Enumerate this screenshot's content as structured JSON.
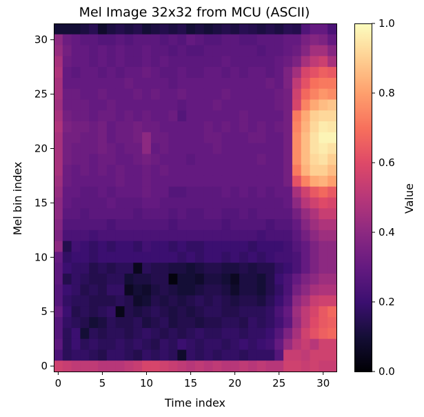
{
  "chart_data": {
    "type": "heatmap",
    "title": "Mel Image 32x32 from MCU (ASCII)",
    "xlabel": "Time index",
    "ylabel": "Mel bin index",
    "colorbar_label": "Value",
    "colormap": "magma",
    "xlim": [
      -0.5,
      31.5
    ],
    "ylim": [
      -0.5,
      31.5
    ],
    "x_ticks": [
      0,
      5,
      10,
      15,
      20,
      25,
      30
    ],
    "y_ticks": [
      0,
      5,
      10,
      15,
      20,
      25,
      30
    ],
    "clim": [
      0.0,
      1.0
    ],
    "colorbar_ticks": [
      "0.0",
      "0.2",
      "0.4",
      "0.6",
      "0.8",
      "1.0"
    ],
    "grid": false,
    "rows_top_to_bottom": [
      [
        0.1,
        0.1,
        0.1,
        0.12,
        0.15,
        0.08,
        0.12,
        0.14,
        0.12,
        0.14,
        0.1,
        0.12,
        0.14,
        0.12,
        0.14,
        0.1,
        0.12,
        0.1,
        0.12,
        0.14,
        0.12,
        0.15,
        0.14,
        0.12,
        0.14,
        0.12,
        0.15,
        0.14,
        0.25,
        0.3,
        0.3,
        0.24
      ],
      [
        0.4,
        0.32,
        0.3,
        0.28,
        0.28,
        0.26,
        0.26,
        0.28,
        0.26,
        0.28,
        0.28,
        0.28,
        0.26,
        0.28,
        0.26,
        0.3,
        0.28,
        0.26,
        0.26,
        0.28,
        0.28,
        0.26,
        0.26,
        0.28,
        0.28,
        0.28,
        0.3,
        0.3,
        0.35,
        0.38,
        0.36,
        0.3
      ],
      [
        0.42,
        0.34,
        0.3,
        0.3,
        0.28,
        0.3,
        0.28,
        0.3,
        0.28,
        0.28,
        0.3,
        0.28,
        0.28,
        0.26,
        0.28,
        0.26,
        0.26,
        0.28,
        0.28,
        0.28,
        0.28,
        0.28,
        0.28,
        0.26,
        0.28,
        0.28,
        0.3,
        0.32,
        0.38,
        0.45,
        0.45,
        0.38
      ],
      [
        0.46,
        0.32,
        0.3,
        0.3,
        0.28,
        0.3,
        0.28,
        0.3,
        0.28,
        0.28,
        0.3,
        0.28,
        0.3,
        0.28,
        0.28,
        0.28,
        0.28,
        0.28,
        0.28,
        0.3,
        0.28,
        0.28,
        0.28,
        0.28,
        0.28,
        0.3,
        0.32,
        0.36,
        0.46,
        0.52,
        0.55,
        0.46
      ],
      [
        0.48,
        0.3,
        0.28,
        0.3,
        0.3,
        0.28,
        0.3,
        0.28,
        0.3,
        0.3,
        0.32,
        0.3,
        0.28,
        0.28,
        0.3,
        0.28,
        0.28,
        0.3,
        0.3,
        0.28,
        0.3,
        0.28,
        0.3,
        0.3,
        0.28,
        0.3,
        0.36,
        0.45,
        0.58,
        0.62,
        0.66,
        0.64
      ],
      [
        0.46,
        0.3,
        0.3,
        0.3,
        0.3,
        0.3,
        0.3,
        0.3,
        0.32,
        0.3,
        0.3,
        0.3,
        0.3,
        0.28,
        0.3,
        0.3,
        0.3,
        0.3,
        0.3,
        0.3,
        0.3,
        0.3,
        0.3,
        0.3,
        0.32,
        0.3,
        0.36,
        0.52,
        0.62,
        0.7,
        0.72,
        0.72
      ],
      [
        0.46,
        0.32,
        0.32,
        0.3,
        0.3,
        0.32,
        0.3,
        0.3,
        0.3,
        0.32,
        0.3,
        0.32,
        0.3,
        0.3,
        0.32,
        0.3,
        0.3,
        0.3,
        0.3,
        0.32,
        0.3,
        0.3,
        0.3,
        0.3,
        0.3,
        0.32,
        0.34,
        0.56,
        0.68,
        0.74,
        0.78,
        0.76
      ],
      [
        0.44,
        0.32,
        0.32,
        0.32,
        0.3,
        0.3,
        0.32,
        0.3,
        0.3,
        0.3,
        0.3,
        0.3,
        0.3,
        0.3,
        0.28,
        0.3,
        0.3,
        0.3,
        0.32,
        0.3,
        0.3,
        0.3,
        0.3,
        0.3,
        0.3,
        0.32,
        0.34,
        0.58,
        0.74,
        0.82,
        0.86,
        0.88
      ],
      [
        0.46,
        0.34,
        0.32,
        0.32,
        0.3,
        0.32,
        0.32,
        0.3,
        0.32,
        0.3,
        0.32,
        0.3,
        0.3,
        0.32,
        0.26,
        0.3,
        0.3,
        0.3,
        0.3,
        0.3,
        0.3,
        0.32,
        0.3,
        0.3,
        0.3,
        0.3,
        0.34,
        0.72,
        0.82,
        0.9,
        0.92,
        0.92
      ],
      [
        0.48,
        0.36,
        0.34,
        0.34,
        0.32,
        0.34,
        0.3,
        0.32,
        0.32,
        0.34,
        0.32,
        0.32,
        0.3,
        0.3,
        0.3,
        0.3,
        0.3,
        0.32,
        0.3,
        0.32,
        0.3,
        0.32,
        0.3,
        0.32,
        0.3,
        0.32,
        0.34,
        0.74,
        0.84,
        0.92,
        0.96,
        0.95
      ],
      [
        0.46,
        0.34,
        0.34,
        0.32,
        0.32,
        0.34,
        0.3,
        0.32,
        0.32,
        0.34,
        0.4,
        0.32,
        0.32,
        0.3,
        0.3,
        0.3,
        0.3,
        0.32,
        0.32,
        0.3,
        0.3,
        0.3,
        0.32,
        0.32,
        0.3,
        0.3,
        0.34,
        0.76,
        0.86,
        0.94,
        0.98,
        0.98
      ],
      [
        0.46,
        0.34,
        0.32,
        0.32,
        0.32,
        0.34,
        0.32,
        0.3,
        0.32,
        0.32,
        0.4,
        0.3,
        0.32,
        0.3,
        0.3,
        0.3,
        0.3,
        0.3,
        0.32,
        0.3,
        0.3,
        0.3,
        0.3,
        0.3,
        0.3,
        0.3,
        0.34,
        0.76,
        0.86,
        0.94,
        0.96,
        0.94
      ],
      [
        0.46,
        0.34,
        0.32,
        0.32,
        0.3,
        0.32,
        0.32,
        0.3,
        0.3,
        0.32,
        0.34,
        0.32,
        0.3,
        0.3,
        0.3,
        0.28,
        0.3,
        0.3,
        0.3,
        0.3,
        0.3,
        0.3,
        0.3,
        0.32,
        0.3,
        0.3,
        0.34,
        0.76,
        0.86,
        0.92,
        0.94,
        0.9
      ],
      [
        0.46,
        0.32,
        0.3,
        0.32,
        0.3,
        0.32,
        0.3,
        0.32,
        0.3,
        0.3,
        0.32,
        0.3,
        0.32,
        0.3,
        0.3,
        0.3,
        0.3,
        0.3,
        0.3,
        0.3,
        0.3,
        0.3,
        0.3,
        0.3,
        0.3,
        0.3,
        0.34,
        0.72,
        0.84,
        0.9,
        0.9,
        0.86
      ],
      [
        0.44,
        0.32,
        0.3,
        0.3,
        0.3,
        0.3,
        0.3,
        0.32,
        0.3,
        0.3,
        0.32,
        0.3,
        0.3,
        0.3,
        0.3,
        0.3,
        0.3,
        0.3,
        0.3,
        0.3,
        0.3,
        0.3,
        0.3,
        0.3,
        0.3,
        0.3,
        0.34,
        0.62,
        0.74,
        0.82,
        0.84,
        0.8
      ],
      [
        0.42,
        0.3,
        0.3,
        0.28,
        0.28,
        0.3,
        0.28,
        0.3,
        0.3,
        0.3,
        0.32,
        0.3,
        0.3,
        0.26,
        0.26,
        0.28,
        0.28,
        0.28,
        0.28,
        0.3,
        0.28,
        0.3,
        0.28,
        0.3,
        0.28,
        0.3,
        0.3,
        0.46,
        0.56,
        0.64,
        0.68,
        0.64
      ],
      [
        0.4,
        0.3,
        0.28,
        0.28,
        0.28,
        0.28,
        0.3,
        0.28,
        0.28,
        0.28,
        0.3,
        0.3,
        0.28,
        0.28,
        0.28,
        0.28,
        0.28,
        0.28,
        0.28,
        0.28,
        0.28,
        0.28,
        0.28,
        0.28,
        0.28,
        0.28,
        0.3,
        0.4,
        0.5,
        0.56,
        0.6,
        0.58
      ],
      [
        0.4,
        0.28,
        0.28,
        0.26,
        0.28,
        0.28,
        0.28,
        0.28,
        0.28,
        0.26,
        0.28,
        0.28,
        0.28,
        0.26,
        0.28,
        0.26,
        0.26,
        0.28,
        0.28,
        0.26,
        0.26,
        0.28,
        0.26,
        0.28,
        0.28,
        0.28,
        0.28,
        0.34,
        0.42,
        0.48,
        0.54,
        0.54
      ],
      [
        0.38,
        0.26,
        0.26,
        0.26,
        0.26,
        0.26,
        0.24,
        0.26,
        0.26,
        0.26,
        0.26,
        0.26,
        0.26,
        0.24,
        0.26,
        0.26,
        0.26,
        0.26,
        0.26,
        0.24,
        0.26,
        0.26,
        0.26,
        0.26,
        0.24,
        0.26,
        0.26,
        0.3,
        0.38,
        0.44,
        0.48,
        0.48
      ],
      [
        0.36,
        0.24,
        0.24,
        0.24,
        0.22,
        0.24,
        0.24,
        0.24,
        0.24,
        0.24,
        0.24,
        0.24,
        0.24,
        0.24,
        0.24,
        0.24,
        0.24,
        0.24,
        0.24,
        0.24,
        0.24,
        0.24,
        0.24,
        0.22,
        0.24,
        0.24,
        0.24,
        0.28,
        0.34,
        0.4,
        0.44,
        0.44
      ],
      [
        0.4,
        0.14,
        0.22,
        0.2,
        0.18,
        0.2,
        0.18,
        0.2,
        0.2,
        0.18,
        0.22,
        0.2,
        0.2,
        0.18,
        0.2,
        0.18,
        0.18,
        0.2,
        0.2,
        0.2,
        0.2,
        0.2,
        0.18,
        0.2,
        0.2,
        0.2,
        0.22,
        0.26,
        0.3,
        0.36,
        0.4,
        0.4
      ],
      [
        0.3,
        0.18,
        0.2,
        0.2,
        0.18,
        0.2,
        0.2,
        0.2,
        0.2,
        0.2,
        0.2,
        0.2,
        0.2,
        0.2,
        0.18,
        0.2,
        0.18,
        0.2,
        0.2,
        0.18,
        0.2,
        0.18,
        0.2,
        0.18,
        0.2,
        0.22,
        0.22,
        0.24,
        0.3,
        0.36,
        0.4,
        0.4
      ],
      [
        0.28,
        0.2,
        0.18,
        0.18,
        0.14,
        0.16,
        0.14,
        0.16,
        0.16,
        0.05,
        0.16,
        0.14,
        0.14,
        0.12,
        0.12,
        0.1,
        0.12,
        0.14,
        0.14,
        0.12,
        0.12,
        0.14,
        0.12,
        0.14,
        0.14,
        0.18,
        0.2,
        0.24,
        0.3,
        0.36,
        0.4,
        0.4
      ],
      [
        0.28,
        0.14,
        0.18,
        0.16,
        0.14,
        0.14,
        0.16,
        0.16,
        0.1,
        0.12,
        0.12,
        0.14,
        0.14,
        0.02,
        0.1,
        0.1,
        0.08,
        0.12,
        0.12,
        0.1,
        0.06,
        0.12,
        0.12,
        0.1,
        0.14,
        0.2,
        0.24,
        0.3,
        0.36,
        0.4,
        0.44,
        0.44
      ],
      [
        0.26,
        0.2,
        0.18,
        0.14,
        0.16,
        0.14,
        0.18,
        0.18,
        0.06,
        0.1,
        0.08,
        0.12,
        0.14,
        0.12,
        0.1,
        0.1,
        0.12,
        0.14,
        0.14,
        0.12,
        0.08,
        0.12,
        0.12,
        0.1,
        0.14,
        0.18,
        0.24,
        0.34,
        0.4,
        0.46,
        0.48,
        0.48
      ],
      [
        0.26,
        0.18,
        0.16,
        0.16,
        0.14,
        0.14,
        0.14,
        0.16,
        0.14,
        0.08,
        0.1,
        0.14,
        0.12,
        0.14,
        0.12,
        0.14,
        0.16,
        0.14,
        0.16,
        0.14,
        0.12,
        0.14,
        0.14,
        0.12,
        0.16,
        0.2,
        0.26,
        0.4,
        0.46,
        0.54,
        0.56,
        0.56
      ],
      [
        0.3,
        0.2,
        0.14,
        0.16,
        0.14,
        0.16,
        0.18,
        0.04,
        0.14,
        0.12,
        0.14,
        0.16,
        0.14,
        0.12,
        0.14,
        0.12,
        0.14,
        0.16,
        0.16,
        0.14,
        0.14,
        0.16,
        0.16,
        0.16,
        0.18,
        0.24,
        0.3,
        0.44,
        0.52,
        0.58,
        0.64,
        0.68
      ],
      [
        0.26,
        0.18,
        0.16,
        0.14,
        0.1,
        0.12,
        0.16,
        0.14,
        0.14,
        0.16,
        0.12,
        0.14,
        0.16,
        0.12,
        0.14,
        0.14,
        0.12,
        0.14,
        0.14,
        0.16,
        0.16,
        0.14,
        0.18,
        0.16,
        0.18,
        0.22,
        0.28,
        0.42,
        0.52,
        0.6,
        0.64,
        0.66
      ],
      [
        0.26,
        0.16,
        0.2,
        0.1,
        0.16,
        0.14,
        0.16,
        0.16,
        0.14,
        0.16,
        0.18,
        0.16,
        0.14,
        0.16,
        0.14,
        0.16,
        0.18,
        0.16,
        0.16,
        0.18,
        0.18,
        0.16,
        0.18,
        0.18,
        0.2,
        0.26,
        0.36,
        0.46,
        0.56,
        0.62,
        0.66,
        0.68
      ],
      [
        0.28,
        0.16,
        0.2,
        0.16,
        0.18,
        0.16,
        0.16,
        0.18,
        0.16,
        0.18,
        0.16,
        0.14,
        0.18,
        0.16,
        0.2,
        0.18,
        0.16,
        0.18,
        0.18,
        0.16,
        0.18,
        0.2,
        0.18,
        0.2,
        0.22,
        0.3,
        0.42,
        0.5,
        0.54,
        0.5,
        0.56,
        0.56
      ],
      [
        0.24,
        0.16,
        0.18,
        0.18,
        0.16,
        0.14,
        0.18,
        0.18,
        0.16,
        0.14,
        0.18,
        0.16,
        0.18,
        0.16,
        0.08,
        0.18,
        0.16,
        0.18,
        0.16,
        0.18,
        0.18,
        0.16,
        0.18,
        0.18,
        0.18,
        0.26,
        0.54,
        0.54,
        0.52,
        0.56,
        0.56,
        0.56
      ],
      [
        0.56,
        0.54,
        0.52,
        0.52,
        0.52,
        0.5,
        0.5,
        0.5,
        0.52,
        0.54,
        0.58,
        0.58,
        0.56,
        0.54,
        0.52,
        0.5,
        0.52,
        0.5,
        0.52,
        0.5,
        0.5,
        0.52,
        0.5,
        0.52,
        0.5,
        0.5,
        0.56,
        0.56,
        0.54,
        0.56,
        0.54,
        0.54
      ]
    ]
  }
}
